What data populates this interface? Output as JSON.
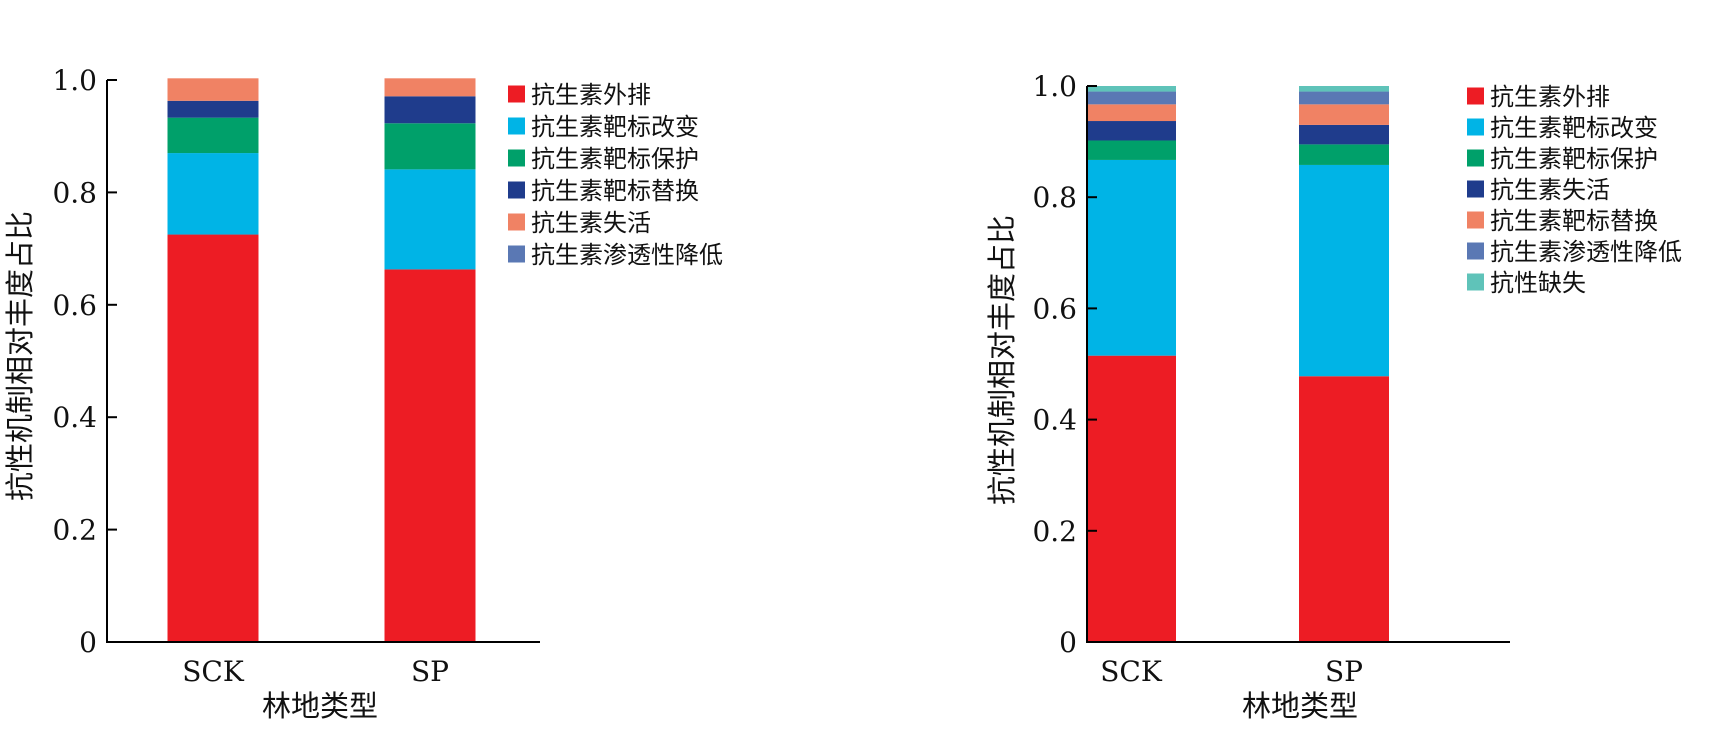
{
  "chart_data": [
    {
      "type": "bar",
      "stacked": true,
      "xlabel": "林地类型",
      "ylabel": "抗性机制相对丰度占比",
      "ylim": [
        0,
        1.0
      ],
      "yticks": [
        "0",
        "0.2",
        "0.4",
        "0.6",
        "0.8",
        "1.0"
      ],
      "categories": [
        "SCK",
        "SP"
      ],
      "legend_position": "right",
      "series": [
        {
          "name": "抗生素外排",
          "color": "#ed1c24",
          "values": [
            0.725,
            0.663
          ]
        },
        {
          "name": "抗生素靶标改变",
          "color": "#00b4e6",
          "values": [
            0.145,
            0.178
          ]
        },
        {
          "name": "抗生素靶标保护",
          "color": "#00a06a",
          "values": [
            0.063,
            0.082
          ]
        },
        {
          "name": "抗生素靶标替换",
          "color": "#1f3c8c",
          "values": [
            0.03,
            0.048
          ]
        },
        {
          "name": "抗生素失活",
          "color": "#f08264",
          "values": [
            0.04,
            0.032
          ]
        },
        {
          "name": "抗生素渗透性降低",
          "color": "#5a78b4",
          "values": [
            0.0,
            0.0
          ]
        }
      ]
    },
    {
      "type": "bar",
      "stacked": true,
      "xlabel": "林地类型",
      "ylabel": "抗性机制相对丰度占比",
      "ylim": [
        0,
        1.0
      ],
      "yticks": [
        "0",
        "0.2",
        "0.4",
        "0.6",
        "0.8",
        "1.0"
      ],
      "categories": [
        "SCK",
        "SP"
      ],
      "legend_position": "right",
      "series": [
        {
          "name": "抗生素外排",
          "color": "#ed1c24",
          "values": [
            0.515,
            0.478
          ]
        },
        {
          "name": "抗生素靶标改变",
          "color": "#00b4e6",
          "values": [
            0.352,
            0.38
          ]
        },
        {
          "name": "抗生素靶标保护",
          "color": "#00a06a",
          "values": [
            0.035,
            0.037
          ]
        },
        {
          "name": "抗生素失活",
          "color": "#1f3c8c",
          "values": [
            0.035,
            0.035
          ]
        },
        {
          "name": "抗生素靶标替换",
          "color": "#f08264",
          "values": [
            0.03,
            0.037
          ]
        },
        {
          "name": "抗生素渗透性降低",
          "color": "#5a78b4",
          "values": [
            0.023,
            0.023
          ]
        },
        {
          "name": "抗性缺失",
          "color": "#5fc3b9",
          "values": [
            0.01,
            0.01
          ]
        }
      ]
    }
  ]
}
